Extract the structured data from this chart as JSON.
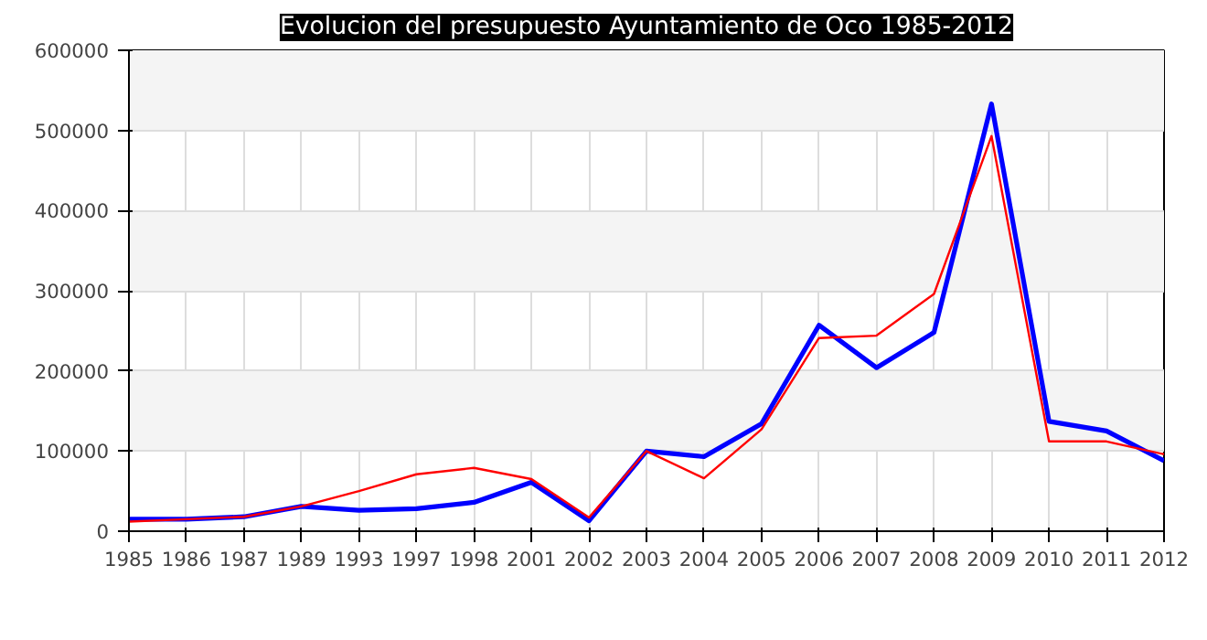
{
  "chart_data": {
    "type": "line",
    "title": "Evolucion del presupuesto Ayuntamiento de Oco 1985-2012",
    "categories": [
      "1985",
      "1986",
      "1987",
      "1989",
      "1993",
      "1997",
      "1998",
      "2001",
      "2002",
      "2003",
      "2004",
      "2005",
      "2006",
      "2007",
      "2008",
      "2009",
      "2010",
      "2011",
      "2012"
    ],
    "series": [
      {
        "color": "#0000ff",
        "values": [
          15000,
          15000,
          18000,
          31000,
          26000,
          28000,
          36000,
          61000,
          13000,
          100000,
          93000,
          134000,
          257000,
          204000,
          248000,
          533000,
          137000,
          125000,
          88000
        ]
      },
      {
        "color": "#ff0000",
        "values": [
          12000,
          15000,
          18000,
          31000,
          50000,
          71000,
          79000,
          65000,
          17000,
          100000,
          66000,
          127000,
          241000,
          244000,
          296000,
          493000,
          112000,
          112000,
          96000
        ]
      }
    ],
    "ylim": [
      0,
      600000
    ],
    "yticks": [
      0,
      100000,
      200000,
      300000,
      400000,
      500000,
      600000
    ],
    "grid": true,
    "marker": "none",
    "line_style": "solid"
  }
}
